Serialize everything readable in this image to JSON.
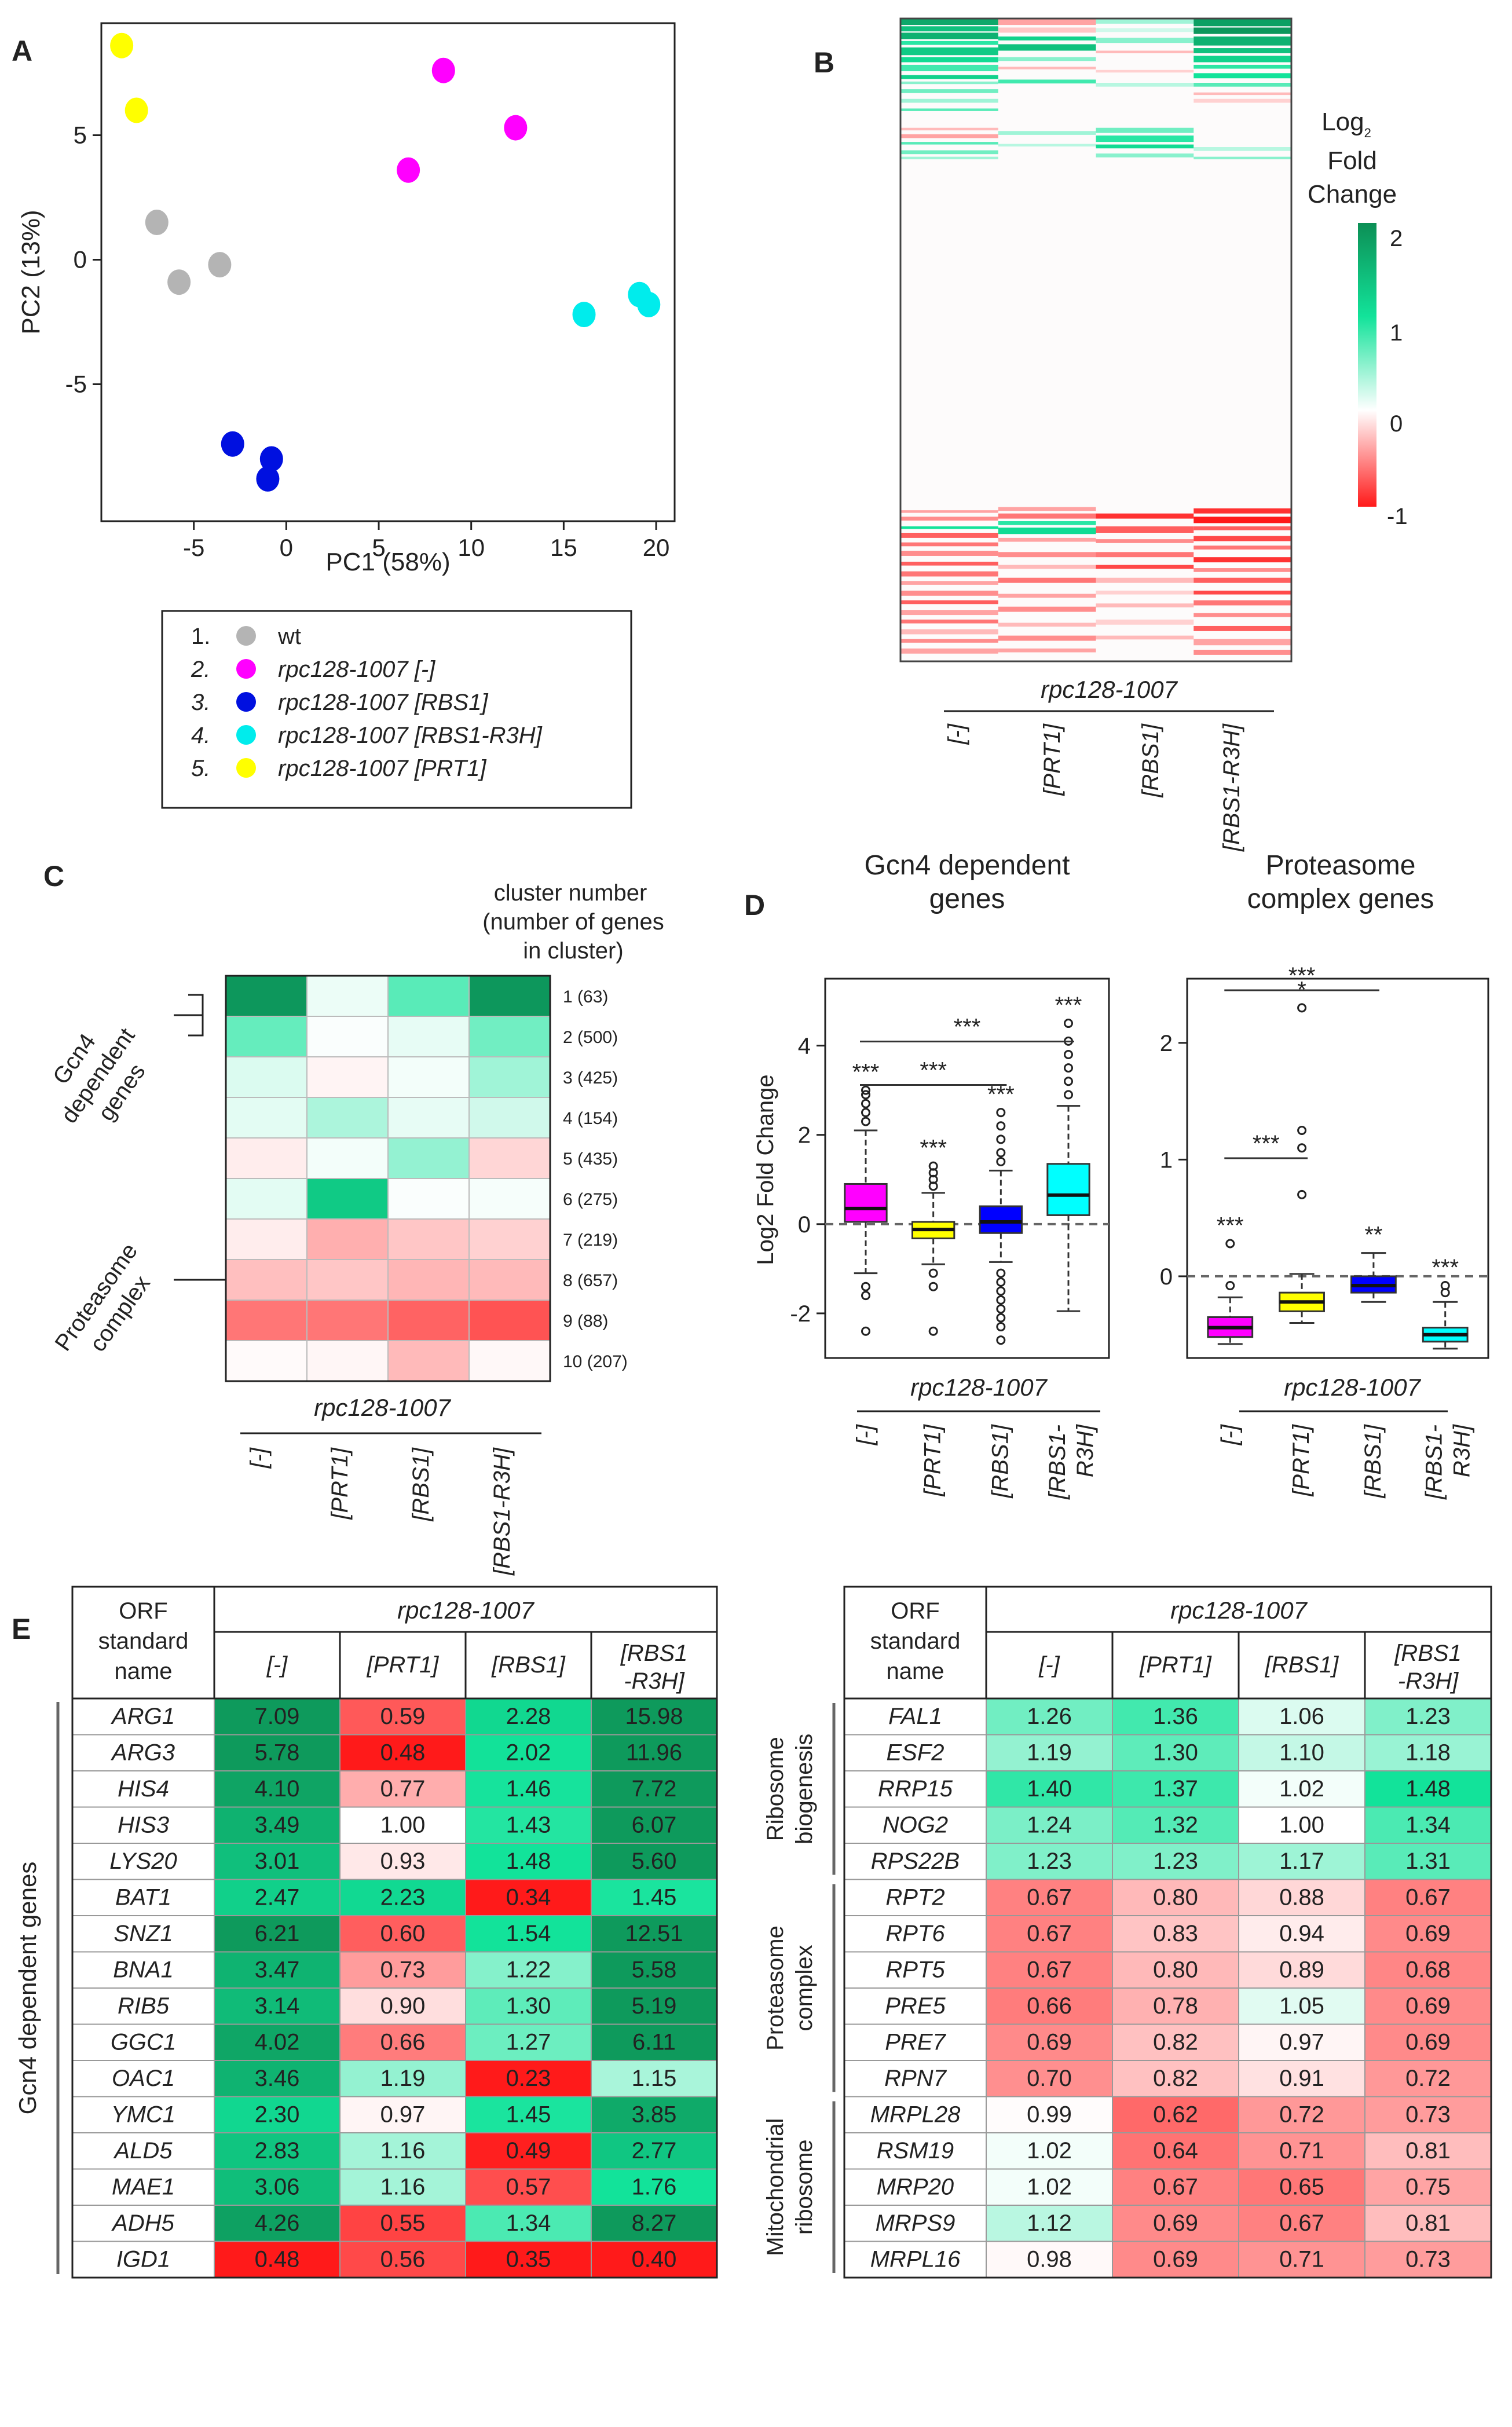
{
  "panel_labels": {
    "a": "A",
    "b": "B",
    "c": "C",
    "d": "D",
    "e": "E"
  },
  "chart_data": [
    {
      "id": "A",
      "type": "scatter",
      "xlabel": "PC1 (58%)",
      "ylabel": "PC2 (13%)",
      "xlim": [
        -10,
        21
      ],
      "ylim": [
        -10.5,
        9.5
      ],
      "xticks": [
        -5,
        0,
        5,
        10,
        15,
        20
      ],
      "yticks": [
        -5,
        0,
        5
      ],
      "series": [
        {
          "name": "wt",
          "color": "#b4b4b4",
          "points": [
            [
              -7,
              1.5
            ],
            [
              -5.8,
              -0.9
            ],
            [
              -3.6,
              -0.2
            ]
          ]
        },
        {
          "name": "rpc128-1007 [-]",
          "color": "#ff00ff",
          "points": [
            [
              8.5,
              7.6
            ],
            [
              12.4,
              5.3
            ],
            [
              6.6,
              3.6
            ]
          ]
        },
        {
          "name": "rpc128-1007 [RBS1]",
          "color": "#0010e0",
          "points": [
            [
              -2.9,
              -7.4
            ],
            [
              -0.8,
              -8.0
            ],
            [
              -1.0,
              -8.8
            ]
          ]
        },
        {
          "name": "rpc128-1007 [RBS1-R3H]",
          "color": "#00ecec",
          "points": [
            [
              16.1,
              -2.2
            ],
            [
              19.1,
              -1.4
            ],
            [
              19.6,
              -1.8
            ]
          ]
        },
        {
          "name": "rpc128-1007 [PRT1]",
          "color": "#ffff00",
          "points": [
            [
              -8.9,
              8.6
            ],
            [
              -8.1,
              6.0
            ]
          ]
        }
      ],
      "legend": [
        {
          "num": "1.",
          "label": "wt",
          "italic": false
        },
        {
          "num": "2.",
          "label": "rpc128-1007 [-]",
          "italic": true
        },
        {
          "num": "3.",
          "label": "rpc128-1007 [RBS1]",
          "italic": true
        },
        {
          "num": "4.",
          "label": "rpc128-1007 [RBS1-R3H]",
          "italic": true
        },
        {
          "num": "5.",
          "label": "rpc128-1007 [PRT1]",
          "italic": true
        }
      ]
    },
    {
      "id": "B",
      "type": "heatmap",
      "colorbar_title": [
        "Log",
        "2",
        "Fold",
        "Change"
      ],
      "colorbar_ticks": [
        "2",
        "1",
        "0",
        "-1"
      ],
      "colorbar_range": [
        -1,
        2
      ],
      "group_label": "rpc128-1007",
      "columns": [
        "[-]",
        "[PRT1]",
        "[RBS1]",
        "[RBS1-R3H]"
      ]
    },
    {
      "id": "C",
      "type": "heatmap",
      "header": [
        "cluster number",
        "(number of genes",
        "in cluster)"
      ],
      "group_label": "rpc128-1007",
      "columns": [
        "[-]",
        "[PRT1]",
        "[RBS1]",
        "[RBS1-R3H]"
      ],
      "rows": [
        {
          "label": "1 (63)",
          "values": [
            1.9,
            0.08,
            0.7,
            1.9
          ]
        },
        {
          "label": "2 (500)",
          "values": [
            0.65,
            0.02,
            0.1,
            0.6
          ]
        },
        {
          "label": "3 (425)",
          "values": [
            0.15,
            -0.05,
            0.05,
            0.4
          ]
        },
        {
          "label": "4 (154)",
          "values": [
            0.12,
            0.35,
            0.1,
            0.2
          ]
        },
        {
          "label": "5 (435)",
          "values": [
            -0.08,
            0.05,
            0.45,
            -0.18
          ]
        },
        {
          "label": "6 (275)",
          "values": [
            0.12,
            1.3,
            0.02,
            0.04
          ]
        },
        {
          "label": "7 (219)",
          "values": [
            -0.08,
            -0.35,
            -0.25,
            -0.2
          ]
        },
        {
          "label": "8 (657)",
          "values": [
            -0.28,
            -0.25,
            -0.32,
            -0.3
          ]
        },
        {
          "label": "9 (88)",
          "values": [
            -0.6,
            -0.6,
            -0.68,
            -0.75
          ]
        },
        {
          "label": "10 (207)",
          "values": [
            -0.02,
            -0.04,
            -0.3,
            -0.03
          ]
        }
      ],
      "groups": [
        "Gcn4",
        "dependent",
        "genes",
        "Proteasome",
        "complex"
      ]
    },
    {
      "id": "D1",
      "type": "box",
      "title": [
        "Gcn4 dependent",
        "genes"
      ],
      "ylabel": "Log2 Fold Change",
      "ylim": [
        -3,
        5.5
      ],
      "yticks": [
        -2,
        0,
        2,
        4
      ],
      "group_label": "rpc128-1007",
      "categories": [
        "[-]",
        "[PRT1]",
        "[RBS1]",
        "[RBS1-R3H]"
      ],
      "colors": [
        "#ff00ff",
        "#ffff00",
        "#0000ff",
        "#00ffff"
      ],
      "boxes": [
        {
          "q1": 0.05,
          "median": 0.35,
          "q3": 0.9,
          "wlow": -1.1,
          "whigh": 2.1,
          "outliers": [
            2.3,
            2.5,
            2.7,
            2.9,
            3.0,
            -1.4,
            -1.6,
            -2.4
          ]
        },
        {
          "q1": -0.32,
          "median": -0.12,
          "q3": 0.05,
          "wlow": -0.9,
          "whigh": 0.7,
          "outliers": [
            0.85,
            1.0,
            1.15,
            1.3,
            -1.1,
            -1.4,
            -2.4
          ]
        },
        {
          "q1": -0.2,
          "median": 0.05,
          "q3": 0.4,
          "wlow": -0.85,
          "whigh": 1.2,
          "outliers": [
            1.4,
            1.6,
            1.9,
            2.2,
            2.5,
            -1.1,
            -1.3,
            -1.5,
            -1.7,
            -1.9,
            -2.1,
            -2.3,
            -2.6
          ]
        },
        {
          "q1": 0.2,
          "median": 0.65,
          "q3": 1.35,
          "wlow": -1.95,
          "whigh": 2.65,
          "outliers": [
            2.9,
            3.2,
            3.5,
            3.8,
            4.1,
            4.5
          ]
        }
      ],
      "significance": [
        {
          "text": "***",
          "target": 0
        },
        {
          "text": "***",
          "target": 1
        },
        {
          "text": "***",
          "target": 2
        },
        {
          "text": "***",
          "target": 3
        }
      ],
      "comparisons": [
        {
          "from": 0,
          "to": 3,
          "text": "***"
        },
        {
          "from": 0,
          "to": 2,
          "text": "***"
        }
      ]
    },
    {
      "id": "D2",
      "type": "box",
      "title": [
        "Proteasome",
        "complex genes"
      ],
      "ylim": [
        -0.7,
        2.55
      ],
      "yticks": [
        0,
        1,
        2
      ],
      "group_label": "rpc128-1007",
      "categories": [
        "[-]",
        "[PRT1]",
        "[RBS1]",
        "[RBS1-R3H]"
      ],
      "colors": [
        "#ff00ff",
        "#ffff00",
        "#0000ff",
        "#00ffff"
      ],
      "boxes": [
        {
          "q1": -0.52,
          "median": -0.44,
          "q3": -0.35,
          "wlow": -0.58,
          "whigh": -0.18,
          "outliers": [
            -0.08,
            0.28
          ]
        },
        {
          "q1": -0.3,
          "median": -0.22,
          "q3": -0.14,
          "wlow": -0.4,
          "whigh": 0.02,
          "outliers": [
            0.7,
            1.1,
            1.25,
            2.3
          ]
        },
        {
          "q1": -0.14,
          "median": -0.08,
          "q3": 0.0,
          "wlow": -0.22,
          "whigh": 0.2,
          "outliers": []
        },
        {
          "q1": -0.56,
          "median": -0.5,
          "q3": -0.44,
          "wlow": -0.62,
          "whigh": -0.22,
          "outliers": [
            -0.08,
            -0.14
          ]
        }
      ],
      "significance": [
        {
          "text": "***",
          "target": 0
        },
        {
          "text": "*",
          "target": 1
        },
        {
          "text": "**",
          "target": 2
        },
        {
          "text": "***",
          "target": 3
        }
      ],
      "comparisons": [
        {
          "from": 0,
          "to": 2,
          "text": "***"
        },
        {
          "from": 0,
          "to": 1,
          "text": "***"
        }
      ]
    },
    {
      "id": "E1",
      "type": "table",
      "header": {
        "orf": [
          "ORF",
          "standard",
          "name"
        ],
        "group": "rpc128-1007",
        "cols": [
          "[-]",
          "[PRT1]",
          "[RBS1]",
          "[RBS1",
          "-R3H]"
        ]
      },
      "section": "Gcn4 dependent genes",
      "rows": [
        {
          "gene": "ARG1",
          "values": [
            "7.09",
            "0.59",
            "2.28",
            "15.98"
          ]
        },
        {
          "gene": "ARG3",
          "values": [
            "5.78",
            "0.48",
            "2.02",
            "11.96"
          ]
        },
        {
          "gene": "HIS4",
          "values": [
            "4.10",
            "0.77",
            "1.46",
            "7.72"
          ]
        },
        {
          "gene": "HIS3",
          "values": [
            "3.49",
            "1.00",
            "1.43",
            "6.07"
          ]
        },
        {
          "gene": "LYS20",
          "values": [
            "3.01",
            "0.93",
            "1.48",
            "5.60"
          ]
        },
        {
          "gene": "BAT1",
          "values": [
            "2.47",
            "2.23",
            "0.34",
            "1.45"
          ]
        },
        {
          "gene": "SNZ1",
          "values": [
            "6.21",
            "0.60",
            "1.54",
            "12.51"
          ]
        },
        {
          "gene": "BNA1",
          "values": [
            "3.47",
            "0.73",
            "1.22",
            "5.58"
          ]
        },
        {
          "gene": "RIB5",
          "values": [
            "3.14",
            "0.90",
            "1.30",
            "5.19"
          ]
        },
        {
          "gene": "GGC1",
          "values": [
            "4.02",
            "0.66",
            "1.27",
            "6.11"
          ]
        },
        {
          "gene": "OAC1",
          "values": [
            "3.46",
            "1.19",
            "0.23",
            "1.15"
          ]
        },
        {
          "gene": "YMC1",
          "values": [
            "2.30",
            "0.97",
            "1.45",
            "3.85"
          ]
        },
        {
          "gene": "ALD5",
          "values": [
            "2.83",
            "1.16",
            "0.49",
            "2.77"
          ]
        },
        {
          "gene": "MAE1",
          "values": [
            "3.06",
            "1.16",
            "0.57",
            "1.76"
          ]
        },
        {
          "gene": "ADH5",
          "values": [
            "4.26",
            "0.55",
            "1.34",
            "8.27"
          ]
        },
        {
          "gene": "IGD1",
          "values": [
            "0.48",
            "0.56",
            "0.35",
            "0.40"
          ]
        }
      ]
    },
    {
      "id": "E2",
      "type": "table",
      "header": {
        "orf": [
          "ORF",
          "standard",
          "name"
        ],
        "group": "rpc128-1007",
        "cols": [
          "[-]",
          "[PRT1]",
          "[RBS1]",
          "[RBS1",
          "-R3H]"
        ]
      },
      "sections": [
        {
          "label": [
            "Ribosome",
            "biogenesis"
          ],
          "start": 0,
          "end": 5
        },
        {
          "label": [
            "Proteasome",
            "complex"
          ],
          "start": 5,
          "end": 11
        },
        {
          "label": [
            "Mitochondrial",
            "ribosome"
          ],
          "start": 11,
          "end": 16
        }
      ],
      "rows": [
        {
          "gene": "FAL1",
          "values": [
            "1.26",
            "1.36",
            "1.06",
            "1.23"
          ]
        },
        {
          "gene": "ESF2",
          "values": [
            "1.19",
            "1.30",
            "1.10",
            "1.18"
          ]
        },
        {
          "gene": "RRP15",
          "values": [
            "1.40",
            "1.37",
            "1.02",
            "1.48"
          ]
        },
        {
          "gene": "NOG2",
          "values": [
            "1.24",
            "1.32",
            "1.00",
            "1.34"
          ]
        },
        {
          "gene": "RPS22B",
          "values": [
            "1.23",
            "1.23",
            "1.17",
            "1.31"
          ]
        },
        {
          "gene": "RPT2",
          "values": [
            "0.67",
            "0.80",
            "0.88",
            "0.67"
          ]
        },
        {
          "gene": "RPT6",
          "values": [
            "0.67",
            "0.83",
            "0.94",
            "0.69"
          ]
        },
        {
          "gene": "RPT5",
          "values": [
            "0.67",
            "0.80",
            "0.89",
            "0.68"
          ]
        },
        {
          "gene": "PRE5",
          "values": [
            "0.66",
            "0.78",
            "1.05",
            "0.69"
          ]
        },
        {
          "gene": "PRE7",
          "values": [
            "0.69",
            "0.82",
            "0.97",
            "0.69"
          ]
        },
        {
          "gene": "RPN7",
          "values": [
            "0.70",
            "0.82",
            "0.91",
            "0.72"
          ]
        },
        {
          "gene": "MRPL28",
          "values": [
            "0.99",
            "0.62",
            "0.72",
            "0.73"
          ]
        },
        {
          "gene": "RSM19",
          "values": [
            "1.02",
            "0.64",
            "0.71",
            "0.81"
          ]
        },
        {
          "gene": "MRP20",
          "values": [
            "1.02",
            "0.67",
            "0.65",
            "0.75"
          ]
        },
        {
          "gene": "MRPS9",
          "values": [
            "1.12",
            "0.69",
            "0.67",
            "0.81"
          ]
        },
        {
          "gene": "MRPL16",
          "values": [
            "0.98",
            "0.69",
            "0.71",
            "0.73"
          ]
        }
      ]
    }
  ]
}
